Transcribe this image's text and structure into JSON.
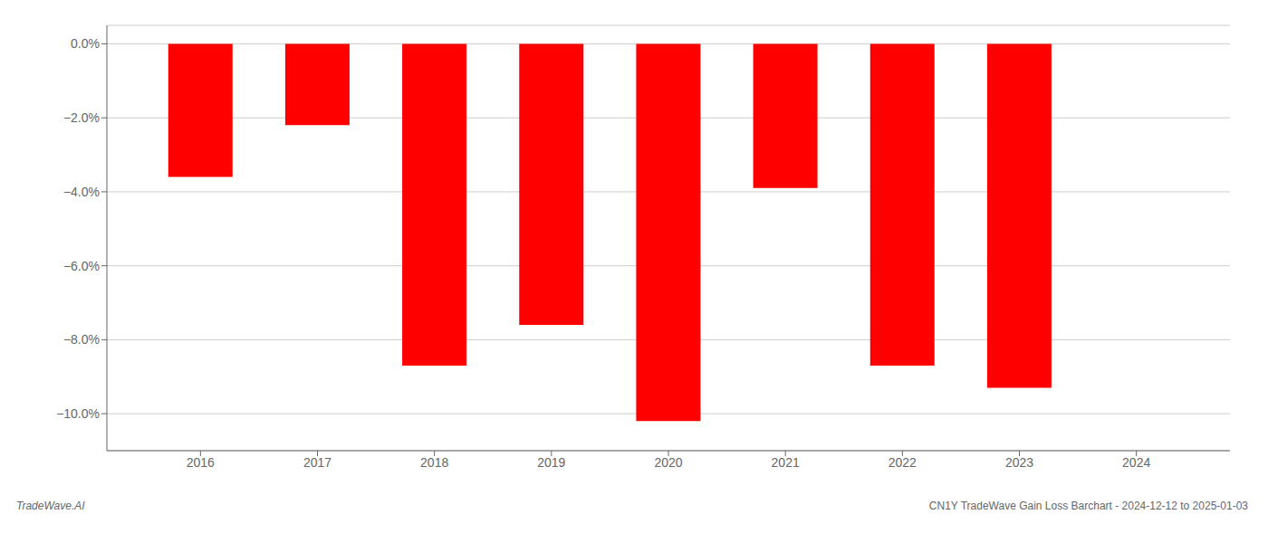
{
  "chart_data": {
    "type": "bar",
    "x": [
      2016,
      2017,
      2018,
      2019,
      2020,
      2021,
      2022,
      2023
    ],
    "values": [
      -0.036,
      -0.022,
      -0.087,
      -0.076,
      -0.102,
      -0.039,
      -0.087,
      -0.093
    ],
    "color": "#ff0000",
    "xlim": [
      2015.2,
      2024.8
    ],
    "xticks": [
      2016,
      2017,
      2018,
      2019,
      2020,
      2021,
      2022,
      2023,
      2024
    ],
    "ylim": [
      -0.11,
      0.005
    ],
    "yticks": [
      {
        "value": 0.0,
        "label": "0.0%"
      },
      {
        "value": -0.02,
        "label": "−2.0%"
      },
      {
        "value": -0.04,
        "label": "−4.0%"
      },
      {
        "value": -0.06,
        "label": "−6.0%"
      },
      {
        "value": -0.08,
        "label": "−8.0%"
      },
      {
        "value": -0.1,
        "label": "−10.0%"
      }
    ],
    "grid": true,
    "annotations": [
      "TradeWave.AI",
      "CN1Y TradeWave Gain Loss Barchart - 2024-12-12 to 2025-01-03"
    ]
  }
}
